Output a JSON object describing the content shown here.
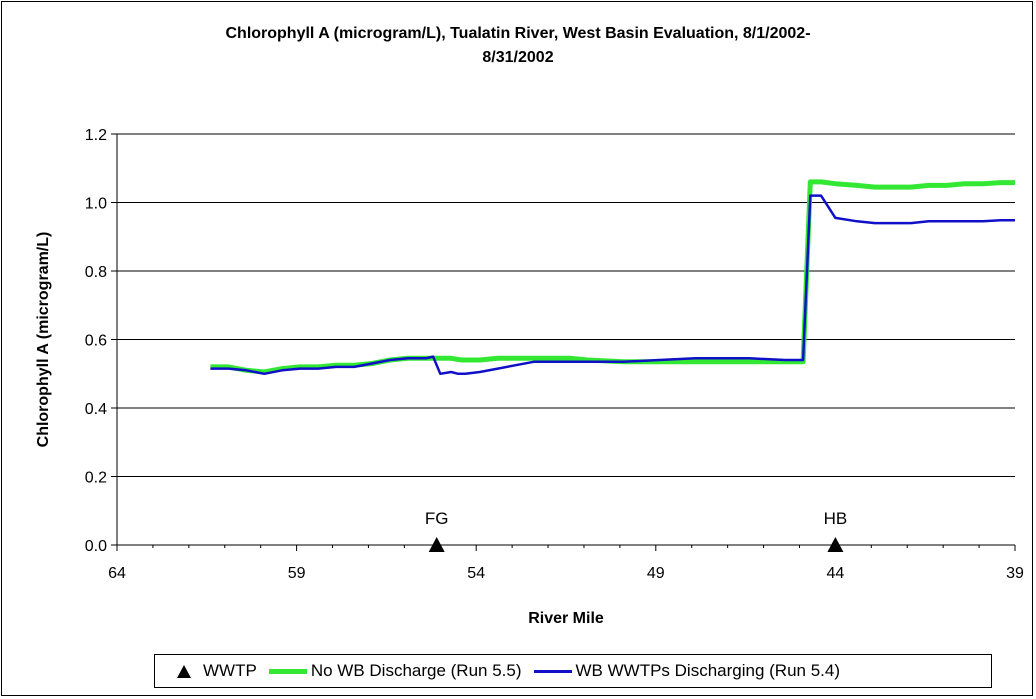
{
  "chart_data": {
    "type": "line",
    "title_lines": [
      "Chlorophyll A (microgram/L), Tualatin River, West Basin Evaluation, 8/1/2002-",
      "8/31/2002"
    ],
    "xlabel": "River Mile",
    "ylabel": "Chlorophyll A (microgram/L)",
    "xlim": [
      64,
      39
    ],
    "ylim": [
      0,
      1.2
    ],
    "x_ticks": [
      64,
      59,
      54,
      49,
      44,
      39
    ],
    "y_ticks": [
      "0.0",
      "0.2",
      "0.4",
      "0.6",
      "0.8",
      "1.0",
      "1.2"
    ],
    "grid": "horizontal",
    "legend_position": "bottom",
    "series": [
      {
        "name": "No WB Discharge (Run 5.5)",
        "color": "#33e833",
        "x": [
          61.4,
          60.9,
          60.4,
          59.9,
          59.4,
          58.9,
          58.4,
          57.9,
          57.4,
          56.9,
          56.4,
          55.9,
          55.4,
          55.2,
          54.9,
          54.7,
          54.4,
          53.9,
          53.4,
          52.9,
          52.4,
          51.9,
          51.4,
          50.9,
          49.9,
          48.9,
          47.9,
          47.4,
          46.9,
          46.4,
          45.4,
          44.9,
          44.7,
          44.4,
          44.0,
          43.4,
          42.9,
          42.4,
          41.9,
          41.4,
          40.9,
          40.4,
          39.9,
          39.4,
          39.0
        ],
        "y": [
          0.52,
          0.52,
          0.51,
          0.505,
          0.515,
          0.52,
          0.52,
          0.525,
          0.525,
          0.53,
          0.54,
          0.545,
          0.545,
          0.545,
          0.545,
          0.545,
          0.54,
          0.54,
          0.545,
          0.545,
          0.545,
          0.545,
          0.545,
          0.54,
          0.535,
          0.535,
          0.535,
          0.535,
          0.535,
          0.535,
          0.535,
          0.535,
          1.06,
          1.06,
          1.055,
          1.05,
          1.045,
          1.045,
          1.045,
          1.05,
          1.05,
          1.055,
          1.055,
          1.058,
          1.058
        ]
      },
      {
        "name": "WB WWTPs Discharging (Run 5.4)",
        "color": "#1010c8",
        "x": [
          61.4,
          60.9,
          60.4,
          59.9,
          59.4,
          58.9,
          58.4,
          57.9,
          57.4,
          56.9,
          56.4,
          55.9,
          55.4,
          55.2,
          55.0,
          54.7,
          54.5,
          54.3,
          53.9,
          53.4,
          52.9,
          52.4,
          51.9,
          51.4,
          50.9,
          49.9,
          48.9,
          47.9,
          47.4,
          46.9,
          46.4,
          45.4,
          44.9,
          44.7,
          44.4,
          44.0,
          43.4,
          42.9,
          42.4,
          41.9,
          41.4,
          40.9,
          40.4,
          39.9,
          39.4,
          39.0
        ],
        "y": [
          0.515,
          0.515,
          0.51,
          0.5,
          0.51,
          0.515,
          0.515,
          0.52,
          0.52,
          0.53,
          0.54,
          0.545,
          0.545,
          0.55,
          0.5,
          0.505,
          0.5,
          0.5,
          0.505,
          0.515,
          0.525,
          0.535,
          0.535,
          0.535,
          0.535,
          0.535,
          0.54,
          0.545,
          0.545,
          0.545,
          0.545,
          0.54,
          0.54,
          1.02,
          1.02,
          0.955,
          0.945,
          0.94,
          0.94,
          0.94,
          0.945,
          0.945,
          0.945,
          0.945,
          0.948,
          0.948
        ]
      },
      {
        "name": "WWTP",
        "marker": "triangle",
        "color": "#000000",
        "x": [
          55.1,
          44.0
        ],
        "y": [
          0.0,
          0.0
        ],
        "labels": [
          "FG",
          "HB"
        ]
      }
    ]
  }
}
